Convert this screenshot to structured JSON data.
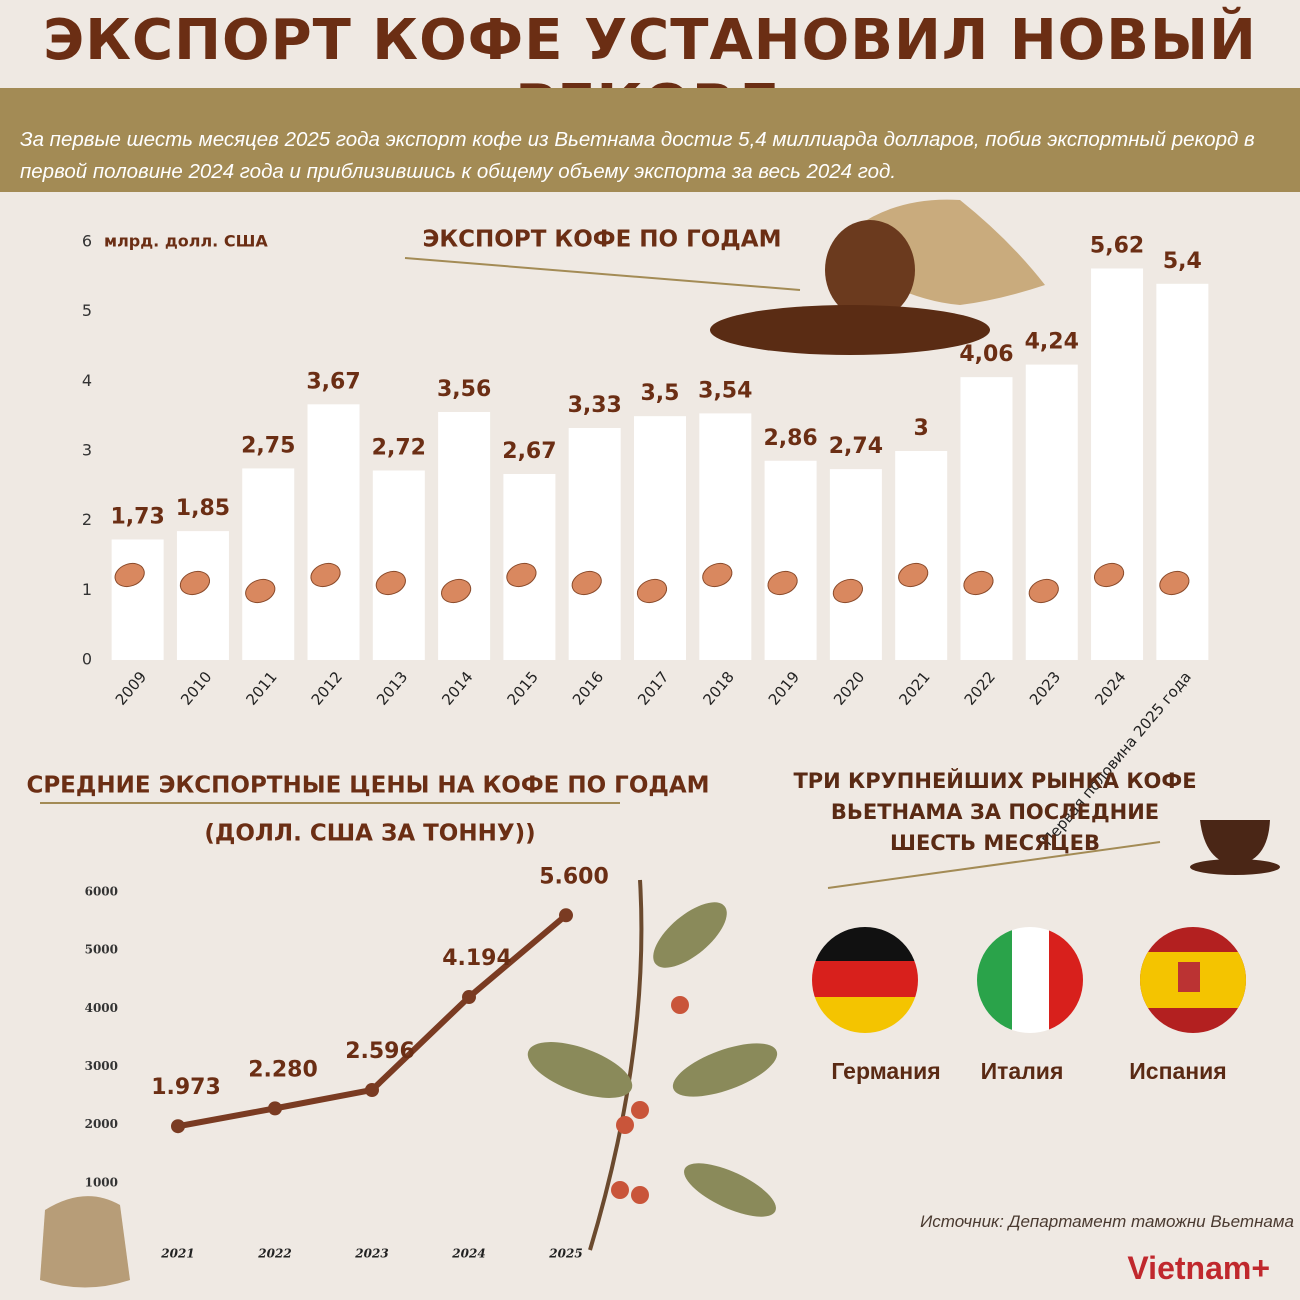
{
  "header": {
    "title": "ЭКСПОРТ КОФЕ УСТАНОВИЛ НОВЫЙ РЕКОРД",
    "subtitle": "За первые шесть месяцев 2025 года экспорт кофе из Вьетнама достиг 5,4 миллиарда долларов, побив экспортный рекорд в первой половине 2024 года и приблизившись к общему объему экспорта за весь 2024 год."
  },
  "chart_data": [
    {
      "type": "bar",
      "title": "ЭКСПОРТ КОФЕ ПО ГОДАМ",
      "y_label": "млрд. долл. США",
      "categories": [
        "2009",
        "2010",
        "2011",
        "2012",
        "2013",
        "2014",
        "2015",
        "2016",
        "2017",
        "2018",
        "2019",
        "2020",
        "2021",
        "2022",
        "2023",
        "2024",
        "Первая половина 2025 года"
      ],
      "values": [
        1.73,
        1.85,
        2.75,
        3.67,
        2.72,
        3.56,
        2.67,
        3.33,
        3.5,
        3.54,
        2.86,
        2.74,
        3,
        4.06,
        4.24,
        5.62,
        5.4
      ],
      "value_labels": [
        "1,73",
        "1,85",
        "2,75",
        "3,67",
        "2,72",
        "3,56",
        "2,67",
        "3,33",
        "3,5",
        "3,54",
        "2,86",
        "2,74",
        "3",
        "4,06",
        "4,24",
        "5,62",
        "5,4"
      ],
      "color": "#ffffff",
      "ylim": [
        0,
        6
      ],
      "yticks": [
        0,
        1,
        2,
        3,
        4,
        5,
        6
      ]
    },
    {
      "type": "line",
      "title": "СРЕДНИЕ ЭКСПОРТНЫЕ ЦЕНЫ НА КОФЕ ПО ГОДАМ",
      "subtitle": "(ДОЛЛ. США ЗА ТОННУ))",
      "categories": [
        "2021",
        "2022",
        "2023",
        "2024",
        "2025"
      ],
      "values": [
        1973,
        2280,
        2596,
        4194,
        5600
      ],
      "value_labels": [
        "1.973",
        "2.280",
        "2.596",
        "4.194",
        "5.600"
      ],
      "color": "#7a3b22",
      "ylim": [
        0,
        6000
      ],
      "yticks": [
        1000,
        2000,
        3000,
        4000,
        5000,
        6000
      ]
    }
  ],
  "markets": {
    "title": "ТРИ КРУПНЕЙШИХ РЫНКА КОФЕ ВЬЕТНАМА ЗА ПОСЛЕДНИЕ ШЕСТЬ МЕСЯЦЕВ",
    "countries": [
      "Германия",
      "Италия",
      "Испания"
    ]
  },
  "source": "Источник: Департамент таможни Вьетнама",
  "logo": "Vietnam+"
}
